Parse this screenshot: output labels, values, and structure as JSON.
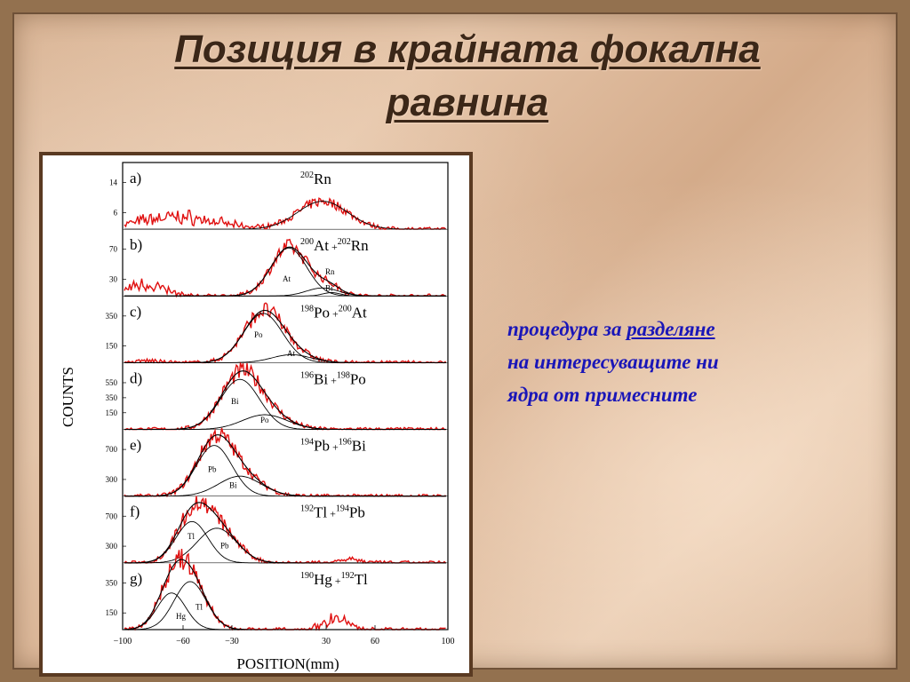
{
  "slide": {
    "title_line1": "Позиция в крайната фокална",
    "title_line2": "равнина",
    "note": {
      "part1": "процедура за ",
      "underlined": "разделяне",
      "line2": "на интересуващите ни",
      "line3": "ядра от примесните"
    }
  },
  "figure": {
    "ylabel": "COUNTS",
    "xlabel": "POSITION(mm)",
    "xticks": [
      "−100",
      "−60",
      "−30",
      "30",
      "60",
      "100"
    ],
    "panels": [
      {
        "letter": "a)",
        "pre1": "202",
        "el1": "Rn",
        "pre2": "",
        "el2": "",
        "yticks": [
          "14",
          "6"
        ],
        "curve_labels": []
      },
      {
        "letter": "b)",
        "pre1": "200",
        "el1": "At",
        "pre2": "202",
        "el2": "Rn",
        "yticks": [
          "70",
          "30"
        ],
        "curve_labels": [
          "At",
          "Rn",
          "Bi"
        ]
      },
      {
        "letter": "c)",
        "pre1": "198",
        "el1": "Po",
        "pre2": "200",
        "el2": "At",
        "yticks": [
          "350",
          "150"
        ],
        "curve_labels": [
          "Po",
          "At"
        ]
      },
      {
        "letter": "d)",
        "pre1": "196",
        "el1": "Bi",
        "pre2": "198",
        "el2": "Po",
        "yticks": [
          "550",
          "350",
          "150"
        ],
        "curve_labels": [
          "Bi",
          "Po"
        ]
      },
      {
        "letter": "e)",
        "pre1": "194",
        "el1": "Pb",
        "pre2": "196",
        "el2": "Bi",
        "yticks": [
          "700",
          "300"
        ],
        "curve_labels": [
          "Pb",
          "Bi"
        ]
      },
      {
        "letter": "f)",
        "pre1": "192",
        "el1": "Tl",
        "pre2": "194",
        "el2": "Pb",
        "yticks": [
          "700",
          "300"
        ],
        "curve_labels": [
          "Tl",
          "Pb"
        ]
      },
      {
        "letter": "g)",
        "pre1": "190",
        "el1": "Hg",
        "pre2": "192",
        "el2": "Tl",
        "yticks": [
          "350",
          "150"
        ],
        "curve_labels": [
          "Hg",
          "Tl"
        ]
      }
    ],
    "colors": {
      "data": "#e01010",
      "fit": "#000000"
    }
  }
}
